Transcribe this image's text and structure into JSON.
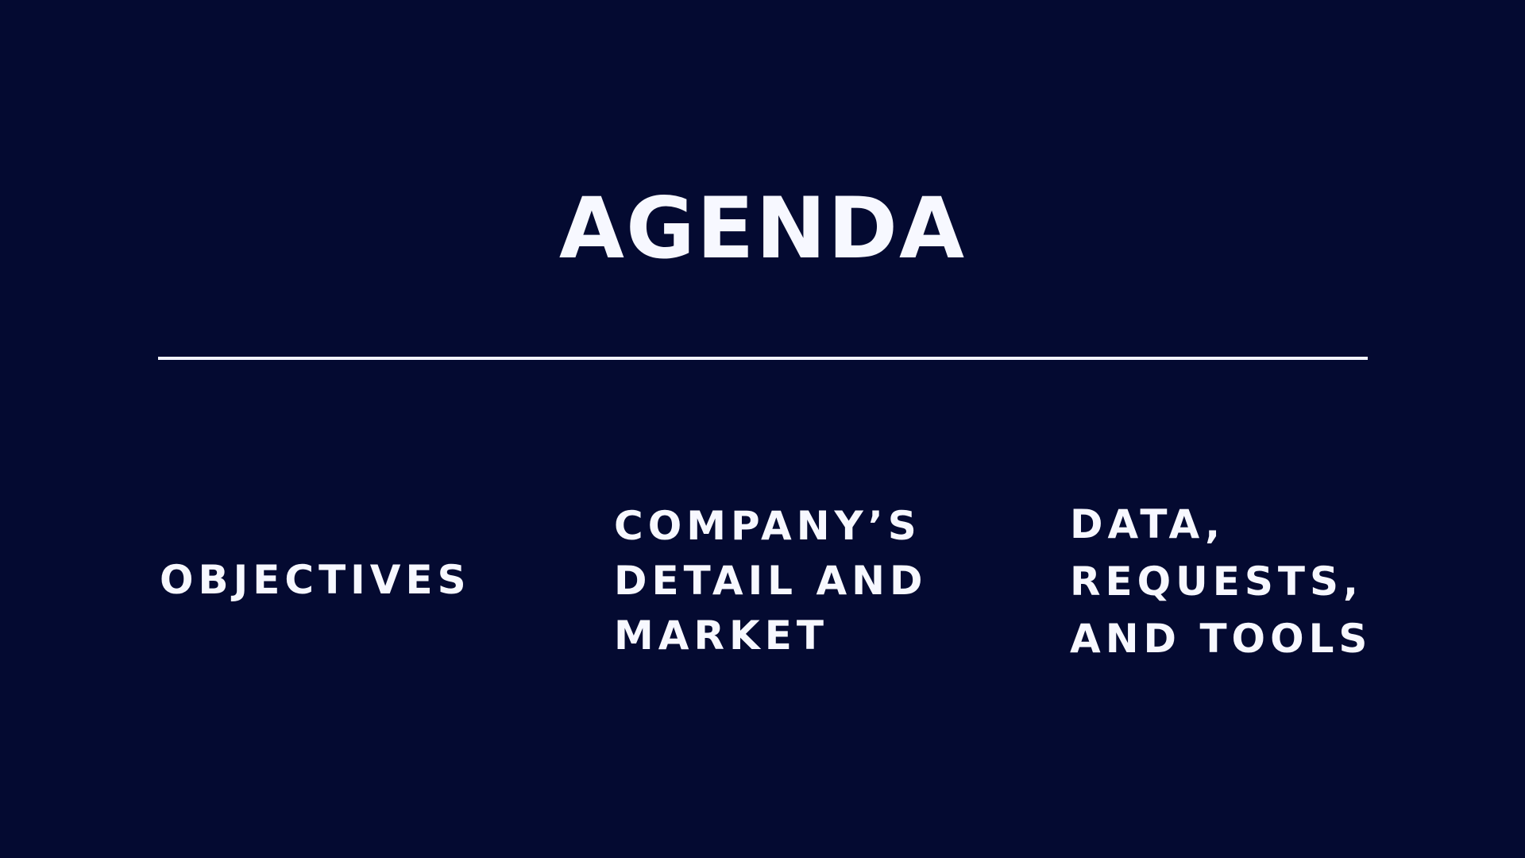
{
  "slide": {
    "title": "AGENDA",
    "items": [
      {
        "label": "OBJECTIVES"
      },
      {
        "label": "COMPANY’S\nDETAIL AND\nMARKET"
      },
      {
        "label": "DATA,\nREQUESTS,\nAND TOOLS"
      }
    ],
    "colors": {
      "background": "#040a31",
      "text": "#f7f8ff",
      "divider": "#f2f4ff"
    }
  }
}
